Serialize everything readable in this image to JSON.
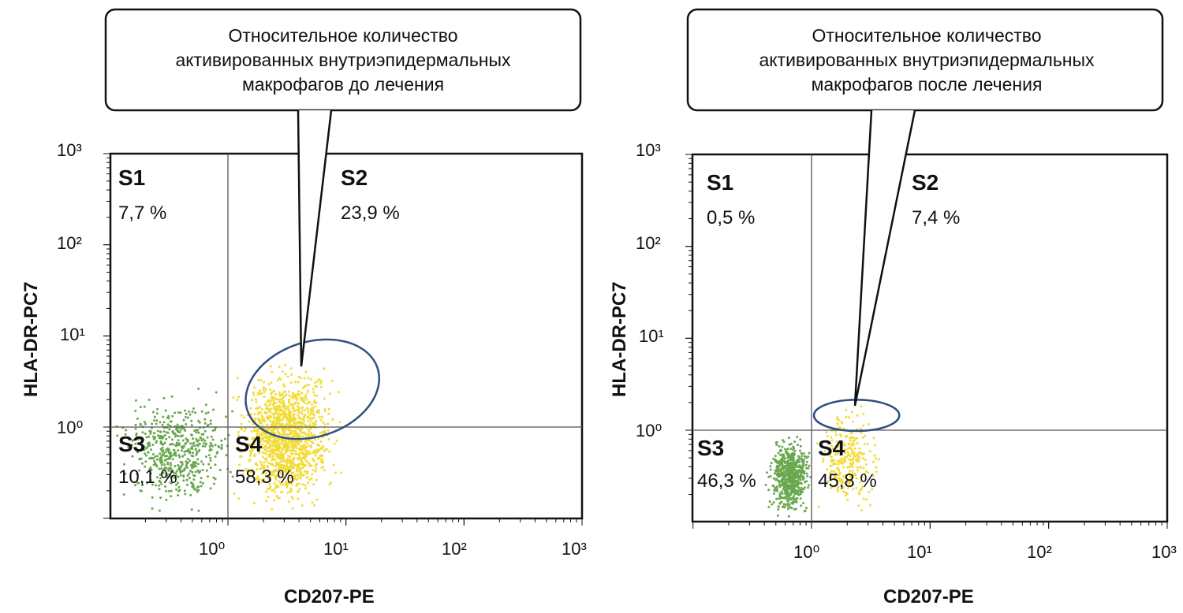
{
  "chart_data": [
    {
      "type": "scatter",
      "title": "Относительное количество активированных внутриэпидермальных макрофагов до лечения",
      "callout_lines": [
        "Относительное количество",
        "активированных внутриэпидермальных",
        "макрофагов до лечения"
      ],
      "xlabel": "CD207-PE",
      "ylabel": "HLA-DR-PC7",
      "xscale": "log",
      "yscale": "log",
      "xlim": [
        0.07,
        1000
      ],
      "ylim": [
        0.07,
        1000
      ],
      "xtick_labels": [
        "10⁰",
        "10¹",
        "10²",
        "10³"
      ],
      "ytick_labels": [
        "10⁰",
        "10¹",
        "10²",
        "10³"
      ],
      "gate_x": 1,
      "gate_y": 1,
      "quadrants": [
        {
          "name": "S1",
          "percent": "7,7 %"
        },
        {
          "name": "S2",
          "percent": "23,9 %"
        },
        {
          "name": "S3",
          "percent": "10,1 %"
        },
        {
          "name": "S4",
          "percent": "58,3 %"
        }
      ],
      "populations": [
        {
          "color": "#6aa84f",
          "x_range": [
            0.1,
            1.3
          ],
          "y_range": [
            0.1,
            3
          ]
        },
        {
          "color": "#f2dc3a",
          "x_range": [
            1,
            10
          ],
          "y_range": [
            0.1,
            6
          ]
        }
      ],
      "ellipse": {
        "cx": 5.2,
        "cy": 2.6,
        "rx_decades": 0.58,
        "ry_decades": 0.52,
        "angle_deg": -18
      },
      "colors": {
        "ellipse": "#2f4f7f",
        "green": "#6aa84f",
        "yellow": "#f2dc3a"
      }
    },
    {
      "type": "scatter",
      "title": "Относительное количество активированных внутриэпидермальных макрофагов после лечения",
      "callout_lines": [
        "Относительное количество",
        "активированных внутриэпидермальных",
        "макрофагов после лечения"
      ],
      "xlabel": "CD207-PE",
      "ylabel": "HLA-DR-PC7",
      "xscale": "log",
      "yscale": "log",
      "xlim": [
        0.07,
        1000
      ],
      "ylim": [
        0.07,
        1000
      ],
      "xtick_labels": [
        "10⁰",
        "10¹",
        "10²",
        "10³"
      ],
      "ytick_labels": [
        "10⁰",
        "10¹",
        "10²",
        "10³"
      ],
      "gate_x": 1,
      "gate_y": 1,
      "quadrants": [
        {
          "name": "S1",
          "percent": "0,5 %"
        },
        {
          "name": "S2",
          "percent": "7,4 %"
        },
        {
          "name": "S3",
          "percent": "46,3 %"
        },
        {
          "name": "S4",
          "percent": "45,8 %"
        }
      ],
      "populations": [
        {
          "color": "#6aa84f",
          "x_range": [
            0.4,
            1.05
          ],
          "y_range": [
            0.1,
            1
          ]
        },
        {
          "color": "#f2dc3a",
          "x_range": [
            1,
            4
          ],
          "y_range": [
            0.1,
            2.5
          ]
        }
      ],
      "ellipse": {
        "cx": 2.4,
        "cy": 1.45,
        "rx_decades": 0.36,
        "ry_decades": 0.17,
        "angle_deg": 0
      },
      "colors": {
        "ellipse": "#2f4f7f",
        "green": "#6aa84f",
        "yellow": "#f2dc3a"
      }
    }
  ]
}
